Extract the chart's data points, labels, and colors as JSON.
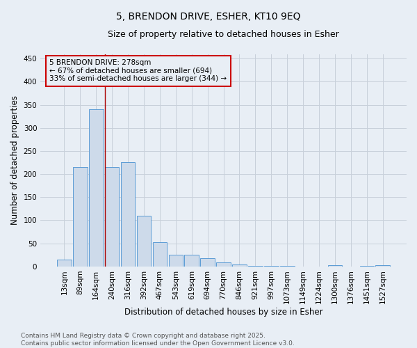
{
  "title_line1": "5, BRENDON DRIVE, ESHER, KT10 9EQ",
  "title_line2": "Size of property relative to detached houses in Esher",
  "categories": [
    "13sqm",
    "89sqm",
    "164sqm",
    "240sqm",
    "316sqm",
    "392sqm",
    "467sqm",
    "543sqm",
    "619sqm",
    "694sqm",
    "770sqm",
    "846sqm",
    "921sqm",
    "997sqm",
    "1073sqm",
    "1149sqm",
    "1224sqm",
    "1300sqm",
    "1376sqm",
    "1451sqm",
    "1527sqm"
  ],
  "values": [
    15,
    215,
    340,
    215,
    225,
    110,
    53,
    25,
    25,
    18,
    9,
    5,
    1,
    1,
    2,
    0,
    0,
    3,
    0,
    1,
    3
  ],
  "bar_facecolor": "#cddaea",
  "bar_edgecolor": "#5b9bd5",
  "grid_color": "#c8d0da",
  "background_color": "#e8eef5",
  "ylabel": "Number of detached properties",
  "xlabel": "Distribution of detached houses by size in Esher",
  "ylim": [
    0,
    460
  ],
  "yticks": [
    0,
    50,
    100,
    150,
    200,
    250,
    300,
    350,
    400,
    450
  ],
  "annotation_text": "5 BRENDON DRIVE: 278sqm\n← 67% of detached houses are smaller (694)\n33% of semi-detached houses are larger (344) →",
  "annotation_box_facecolor": "#e8eef5",
  "annotation_box_edgecolor": "#cc0000",
  "vline_x": 2.57,
  "vline_color": "#aa0000",
  "footer_line1": "Contains HM Land Registry data © Crown copyright and database right 2025.",
  "footer_line2": "Contains public sector information licensed under the Open Government Licence v3.0.",
  "title_fontsize": 10,
  "subtitle_fontsize": 9,
  "axis_label_fontsize": 8.5,
  "tick_fontsize": 7.5,
  "annotation_fontsize": 7.5,
  "footer_fontsize": 6.5
}
